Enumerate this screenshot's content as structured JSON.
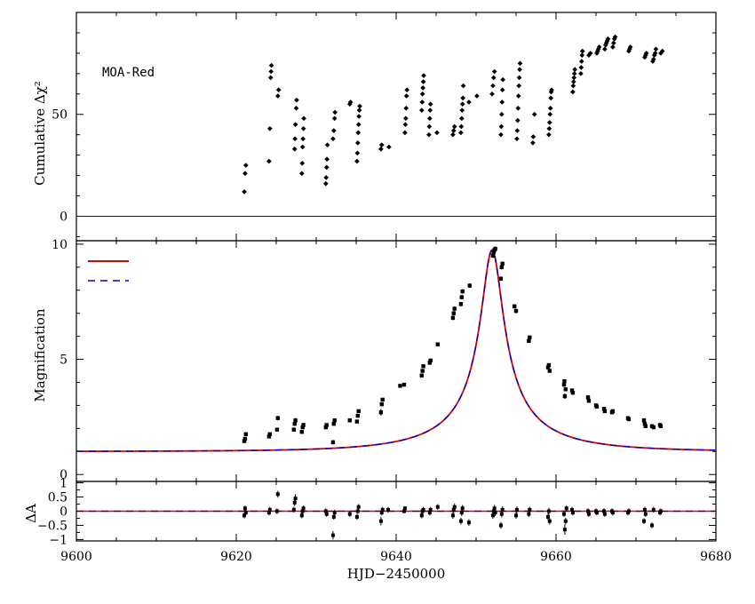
{
  "chart_data": [
    {
      "panel": "top",
      "type": "scatter",
      "annotation": "MOA-Red",
      "ylabel": "Cumulative Δχ²",
      "xlim": [
        9600,
        9680
      ],
      "ylim": [
        -12,
        100
      ],
      "yticks": [
        0,
        50
      ],
      "zero_line": 0,
      "points": [
        [
          9621.0,
          12
        ],
        [
          9621.1,
          21
        ],
        [
          9621.2,
          25
        ],
        [
          9624.1,
          27
        ],
        [
          9624.2,
          43
        ],
        [
          9624.3,
          68
        ],
        [
          9624.35,
          71
        ],
        [
          9624.4,
          74
        ],
        [
          9625.2,
          59
        ],
        [
          9625.3,
          62
        ],
        [
          9627.3,
          33
        ],
        [
          9627.35,
          38
        ],
        [
          9627.4,
          45
        ],
        [
          9627.5,
          53
        ],
        [
          9627.55,
          57
        ],
        [
          9628.2,
          21
        ],
        [
          9628.25,
          26
        ],
        [
          9628.3,
          34
        ],
        [
          9628.35,
          38
        ],
        [
          9628.4,
          43
        ],
        [
          9628.45,
          48
        ],
        [
          9631.2,
          16
        ],
        [
          9631.25,
          19
        ],
        [
          9631.3,
          24
        ],
        [
          9631.35,
          28
        ],
        [
          9631.4,
          35
        ],
        [
          9632.1,
          38
        ],
        [
          9632.2,
          42
        ],
        [
          9632.3,
          48
        ],
        [
          9632.35,
          51
        ],
        [
          9634.2,
          55
        ],
        [
          9634.3,
          56
        ],
        [
          9635.1,
          27
        ],
        [
          9635.15,
          31
        ],
        [
          9635.2,
          36
        ],
        [
          9635.25,
          41
        ],
        [
          9635.3,
          45
        ],
        [
          9635.35,
          49
        ],
        [
          9635.4,
          52
        ],
        [
          9635.45,
          54
        ],
        [
          9638.1,
          33
        ],
        [
          9638.2,
          35
        ],
        [
          9639.1,
          34
        ],
        [
          9641.1,
          41
        ],
        [
          9641.15,
          45
        ],
        [
          9641.2,
          48
        ],
        [
          9641.25,
          53
        ],
        [
          9641.3,
          59
        ],
        [
          9641.35,
          62
        ],
        [
          9643.2,
          52
        ],
        [
          9643.25,
          56
        ],
        [
          9643.3,
          60
        ],
        [
          9643.35,
          63
        ],
        [
          9643.4,
          66
        ],
        [
          9643.45,
          69
        ],
        [
          9644.1,
          40
        ],
        [
          9644.15,
          44
        ],
        [
          9644.2,
          48
        ],
        [
          9644.25,
          52
        ],
        [
          9644.3,
          55
        ],
        [
          9645.1,
          41
        ],
        [
          9647.1,
          40
        ],
        [
          9647.2,
          42
        ],
        [
          9647.3,
          44
        ],
        [
          9648.1,
          41
        ],
        [
          9648.15,
          44
        ],
        [
          9648.2,
          48
        ],
        [
          9648.25,
          52
        ],
        [
          9648.3,
          55
        ],
        [
          9648.35,
          58
        ],
        [
          9648.4,
          64
        ],
        [
          9649.1,
          56
        ],
        [
          9650.1,
          59
        ],
        [
          9652.0,
          60
        ],
        [
          9652.1,
          64
        ],
        [
          9652.2,
          68
        ],
        [
          9652.3,
          71
        ],
        [
          9653.1,
          40
        ],
        [
          9653.15,
          44
        ],
        [
          9653.2,
          50
        ],
        [
          9653.25,
          56
        ],
        [
          9653.3,
          62
        ],
        [
          9653.35,
          67
        ],
        [
          9655.1,
          38
        ],
        [
          9655.15,
          42
        ],
        [
          9655.2,
          47
        ],
        [
          9655.25,
          53
        ],
        [
          9655.3,
          59
        ],
        [
          9655.35,
          64
        ],
        [
          9655.4,
          68
        ],
        [
          9655.45,
          72
        ],
        [
          9655.5,
          75
        ],
        [
          9657.1,
          36
        ],
        [
          9657.15,
          39
        ],
        [
          9657.3,
          50
        ],
        [
          9659.1,
          40
        ],
        [
          9659.15,
          43
        ],
        [
          9659.2,
          46
        ],
        [
          9659.25,
          50
        ],
        [
          9659.3,
          53
        ],
        [
          9659.35,
          58
        ],
        [
          9659.4,
          61
        ],
        [
          9659.45,
          62
        ],
        [
          9662.1,
          61
        ],
        [
          9662.15,
          64
        ],
        [
          9662.2,
          66
        ],
        [
          9662.25,
          68
        ],
        [
          9662.3,
          70
        ],
        [
          9662.35,
          72
        ],
        [
          9663.1,
          70
        ],
        [
          9663.15,
          73
        ],
        [
          9663.2,
          76
        ],
        [
          9663.25,
          79
        ],
        [
          9663.3,
          81
        ],
        [
          9664.1,
          79
        ],
        [
          9664.3,
          80
        ],
        [
          9665.1,
          80
        ],
        [
          9665.2,
          81
        ],
        [
          9665.3,
          82
        ],
        [
          9665.4,
          83
        ],
        [
          9666.1,
          82
        ],
        [
          9666.2,
          84
        ],
        [
          9666.3,
          85
        ],
        [
          9666.4,
          86
        ],
        [
          9666.5,
          87
        ],
        [
          9667.1,
          83
        ],
        [
          9667.2,
          85
        ],
        [
          9667.3,
          87
        ],
        [
          9667.4,
          88
        ],
        [
          9669.1,
          81
        ],
        [
          9669.2,
          82
        ],
        [
          9669.3,
          83
        ],
        [
          9671.1,
          78
        ],
        [
          9671.2,
          79
        ],
        [
          9671.3,
          80
        ],
        [
          9672.1,
          76
        ],
        [
          9672.2,
          77
        ],
        [
          9672.3,
          79
        ],
        [
          9672.4,
          80
        ],
        [
          9672.5,
          82
        ],
        [
          9673.1,
          80
        ],
        [
          9673.3,
          81
        ]
      ]
    },
    {
      "panel": "middle",
      "type": "line",
      "ylabel": "Magnification",
      "xlim": [
        9600,
        9680
      ],
      "ylim": [
        -0.3,
        10.15
      ],
      "yticks": [
        0,
        5,
        10
      ],
      "model": {
        "t0": 9652.0,
        "u0": 0.103,
        "tE": 13.6
      },
      "series": [
        {
          "style": "solid",
          "color": "#e00000"
        },
        {
          "style": "dashed",
          "color": "#0000cc"
        }
      ],
      "points": [
        [
          9621.0,
          1.45,
          0.08
        ],
        [
          9621.1,
          1.55,
          0.08
        ],
        [
          9621.2,
          1.75,
          0.08
        ],
        [
          9624.1,
          1.65,
          0.08
        ],
        [
          9624.2,
          1.75,
          0.08
        ],
        [
          9625.1,
          1.95,
          0.08
        ],
        [
          9625.2,
          2.45,
          0.1
        ],
        [
          9627.2,
          1.95,
          0.08
        ],
        [
          9627.3,
          2.2,
          0.08
        ],
        [
          9627.4,
          2.35,
          0.1
        ],
        [
          9628.2,
          1.85,
          0.08
        ],
        [
          9628.3,
          2.05,
          0.08
        ],
        [
          9628.4,
          2.15,
          0.08
        ],
        [
          9631.2,
          2.05,
          0.08
        ],
        [
          9631.3,
          2.15,
          0.08
        ],
        [
          9632.1,
          1.4,
          0.1
        ],
        [
          9632.2,
          2.2,
          0.08
        ],
        [
          9632.3,
          2.35,
          0.08
        ],
        [
          9634.2,
          2.35,
          0.08
        ],
        [
          9635.1,
          2.3,
          0.08
        ],
        [
          9635.2,
          2.55,
          0.08
        ],
        [
          9635.3,
          2.75,
          0.08
        ],
        [
          9638.1,
          2.7,
          0.15
        ],
        [
          9638.2,
          3.05,
          0.08
        ],
        [
          9638.3,
          3.25,
          0.08
        ],
        [
          9640.5,
          3.85,
          0.08
        ],
        [
          9641.0,
          3.9,
          0.08
        ],
        [
          9643.2,
          4.3,
          0.08
        ],
        [
          9643.3,
          4.5,
          0.08
        ],
        [
          9643.4,
          4.7,
          0.08
        ],
        [
          9644.2,
          4.85,
          0.08
        ],
        [
          9644.3,
          4.95,
          0.08
        ],
        [
          9645.2,
          5.65,
          0.08
        ],
        [
          9647.1,
          6.8,
          0.1
        ],
        [
          9647.2,
          7.0,
          0.1
        ],
        [
          9647.3,
          7.2,
          0.1
        ],
        [
          9648.1,
          7.4,
          0.1
        ],
        [
          9648.2,
          7.7,
          0.1
        ],
        [
          9648.3,
          7.95,
          0.1
        ],
        [
          9649.2,
          8.2,
          0.1
        ],
        [
          9652.1,
          9.5,
          0.1
        ],
        [
          9652.2,
          9.65,
          0.1
        ],
        [
          9652.3,
          9.75,
          0.1
        ],
        [
          9652.4,
          9.8,
          0.1
        ],
        [
          9653.1,
          8.5,
          0.1
        ],
        [
          9653.2,
          9.0,
          0.1
        ],
        [
          9653.3,
          9.15,
          0.1
        ],
        [
          9654.8,
          7.3,
          0.1
        ],
        [
          9655.0,
          7.1,
          0.1
        ],
        [
          9656.6,
          5.8,
          0.08
        ],
        [
          9656.7,
          5.95,
          0.08
        ],
        [
          9659.0,
          4.65,
          0.08
        ],
        [
          9659.1,
          4.75,
          0.08
        ],
        [
          9659.2,
          4.5,
          0.08
        ],
        [
          9661.0,
          3.9,
          0.08
        ],
        [
          9661.05,
          4.05,
          0.08
        ],
        [
          9661.1,
          3.4,
          0.12
        ],
        [
          9661.2,
          3.7,
          0.08
        ],
        [
          9662.0,
          3.65,
          0.08
        ],
        [
          9662.1,
          3.55,
          0.08
        ],
        [
          9664.0,
          3.35,
          0.08
        ],
        [
          9664.1,
          3.2,
          0.08
        ],
        [
          9665.0,
          3.0,
          0.08
        ],
        [
          9665.1,
          2.95,
          0.08
        ],
        [
          9666.0,
          2.85,
          0.08
        ],
        [
          9666.1,
          2.75,
          0.08
        ],
        [
          9667.0,
          2.7,
          0.08
        ],
        [
          9667.1,
          2.75,
          0.08
        ],
        [
          9669.0,
          2.45,
          0.08
        ],
        [
          9669.1,
          2.4,
          0.08
        ],
        [
          9671.0,
          2.35,
          0.08
        ],
        [
          9671.1,
          2.2,
          0.08
        ],
        [
          9671.2,
          2.1,
          0.08
        ],
        [
          9672.0,
          2.1,
          0.08
        ],
        [
          9672.2,
          2.05,
          0.08
        ],
        [
          9673.0,
          2.15,
          0.08
        ],
        [
          9673.1,
          2.1,
          0.08
        ]
      ]
    },
    {
      "panel": "bottom",
      "type": "scatter",
      "ylabel": "ΔA",
      "xlabel": "HJD−2450000",
      "xlim": [
        9600,
        9680
      ],
      "ylim": [
        -1.05,
        1.05
      ],
      "xticks": [
        9600,
        9620,
        9640,
        9660,
        9680
      ],
      "yticks": [
        -1,
        -0.5,
        0,
        0.5,
        1
      ],
      "yticklabels": [
        "−1",
        "−0.5",
        "0",
        "0.5",
        "1"
      ],
      "points": [
        [
          9621.0,
          -0.15,
          0.1
        ],
        [
          9621.1,
          0.1,
          0.1
        ],
        [
          9621.2,
          -0.05,
          0.1
        ],
        [
          9624.1,
          -0.05,
          0.1
        ],
        [
          9624.2,
          0.05,
          0.1
        ],
        [
          9625.1,
          0.0,
          0.1
        ],
        [
          9625.2,
          0.6,
          0.12
        ],
        [
          9627.2,
          0.05,
          0.1
        ],
        [
          9627.3,
          0.3,
          0.12
        ],
        [
          9627.4,
          0.45,
          0.15
        ],
        [
          9628.2,
          -0.15,
          0.1
        ],
        [
          9628.3,
          0.0,
          0.1
        ],
        [
          9628.4,
          0.1,
          0.1
        ],
        [
          9631.2,
          0.0,
          0.1
        ],
        [
          9631.3,
          -0.1,
          0.1
        ],
        [
          9632.1,
          -0.85,
          0.15
        ],
        [
          9632.2,
          -0.2,
          0.1
        ],
        [
          9632.3,
          -0.05,
          0.1
        ],
        [
          9634.2,
          -0.1,
          0.1
        ],
        [
          9635.1,
          -0.2,
          0.1
        ],
        [
          9635.2,
          0.0,
          0.1
        ],
        [
          9635.3,
          0.15,
          0.1
        ],
        [
          9638.1,
          -0.35,
          0.15
        ],
        [
          9638.2,
          -0.05,
          0.1
        ],
        [
          9638.3,
          0.05,
          0.1
        ],
        [
          9639.0,
          0.05,
          0.1
        ],
        [
          9641.0,
          0.0,
          0.08
        ],
        [
          9641.1,
          0.1,
          0.08
        ],
        [
          9643.2,
          -0.15,
          0.1
        ],
        [
          9643.3,
          0.0,
          0.1
        ],
        [
          9643.4,
          0.05,
          0.1
        ],
        [
          9644.2,
          -0.05,
          0.1
        ],
        [
          9644.3,
          0.05,
          0.1
        ],
        [
          9645.2,
          0.15,
          0.1
        ],
        [
          9647.1,
          -0.15,
          0.12
        ],
        [
          9647.2,
          0.05,
          0.12
        ],
        [
          9647.3,
          0.15,
          0.12
        ],
        [
          9648.1,
          -0.35,
          0.12
        ],
        [
          9648.2,
          -0.05,
          0.12
        ],
        [
          9648.3,
          0.1,
          0.12
        ],
        [
          9649.1,
          -0.4,
          0.12
        ],
        [
          9652.1,
          -0.15,
          0.12
        ],
        [
          9652.2,
          0.0,
          0.12
        ],
        [
          9652.3,
          0.1,
          0.12
        ],
        [
          9652.4,
          -0.05,
          0.12
        ],
        [
          9653.1,
          -0.5,
          0.12
        ],
        [
          9653.2,
          -0.1,
          0.12
        ],
        [
          9653.3,
          0.05,
          0.12
        ],
        [
          9655.0,
          -0.15,
          0.12
        ],
        [
          9655.1,
          0.05,
          0.12
        ],
        [
          9656.6,
          -0.1,
          0.1
        ],
        [
          9656.7,
          0.05,
          0.1
        ],
        [
          9659.0,
          -0.2,
          0.12
        ],
        [
          9659.1,
          0.0,
          0.12
        ],
        [
          9659.2,
          -0.35,
          0.12
        ],
        [
          9661.0,
          -0.1,
          0.1
        ],
        [
          9661.1,
          -0.65,
          0.18
        ],
        [
          9661.2,
          -0.35,
          0.12
        ],
        [
          9661.3,
          0.1,
          0.1
        ],
        [
          9662.0,
          0.05,
          0.1
        ],
        [
          9662.1,
          -0.05,
          0.1
        ],
        [
          9664.0,
          0.0,
          0.1
        ],
        [
          9664.1,
          -0.1,
          0.1
        ],
        [
          9665.0,
          0.0,
          0.1
        ],
        [
          9665.1,
          -0.05,
          0.1
        ],
        [
          9666.0,
          0.0,
          0.1
        ],
        [
          9666.1,
          -0.1,
          0.1
        ],
        [
          9667.0,
          0.0,
          0.1
        ],
        [
          9667.1,
          -0.05,
          0.1
        ],
        [
          9669.0,
          -0.05,
          0.1
        ],
        [
          9669.1,
          0.0,
          0.1
        ],
        [
          9671.0,
          -0.35,
          0.1
        ],
        [
          9671.1,
          0.05,
          0.1
        ],
        [
          9671.2,
          -0.1,
          0.1
        ],
        [
          9672.0,
          -0.5,
          0.1
        ],
        [
          9672.2,
          0.05,
          0.1
        ],
        [
          9673.0,
          -0.05,
          0.1
        ],
        [
          9673.1,
          0.0,
          0.1
        ]
      ]
    }
  ]
}
